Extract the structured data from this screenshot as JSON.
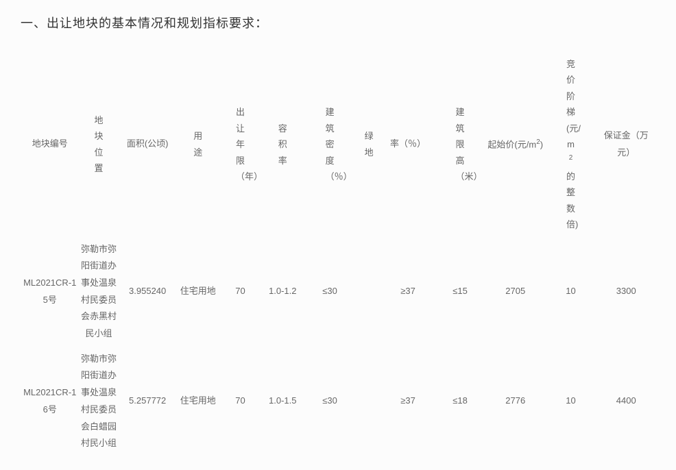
{
  "title": "一、出让地块的基本情况和规划指标要求：",
  "header": {
    "id": "地块编号",
    "loc": "地块位置",
    "area": "面积(公顷)",
    "use": "用途",
    "term": "出让年限（年）",
    "ratio": "容积率",
    "density": "建筑密度（％）",
    "green1": "绿地",
    "green2": "率（％）",
    "height": "建筑限高（米）",
    "start_prefix": "起始价(元/m",
    "start_suffix": ")",
    "step_prefix": "竞价阶梯(元/m",
    "step_suffix": "的整数倍)",
    "deposit": "保证金（万元）"
  },
  "rows": [
    {
      "id": "ML2021CR-15号",
      "loc": "弥勒市弥阳街道办事处温泉村民委员会赤黑村民小组",
      "area": "3.955240",
      "use": "住宅用地",
      "term": "70",
      "ratio": "1.0-1.2",
      "density": "≤30",
      "green1": "",
      "green2": "≥37",
      "height": "≤15",
      "start": "2705",
      "step": "10",
      "deposit": "3300"
    },
    {
      "id": "ML2021CR-16号",
      "loc": "弥勒市弥阳街道办事处温泉村民委员会白蜡园村民小组",
      "area": "5.257772",
      "use": "住宅用地",
      "term": "70",
      "ratio": "1.0-1.5",
      "density": "≤30",
      "green1": "",
      "green2": "≥37",
      "height": "≤18",
      "start": "2776",
      "step": "10",
      "deposit": "4400"
    }
  ],
  "styling": {
    "title_color": "#333333",
    "text_color": "#666666",
    "background_color": "#fcfcfc",
    "title_fontsize": 18,
    "cell_fontsize": 13,
    "line_height": 1.9
  }
}
